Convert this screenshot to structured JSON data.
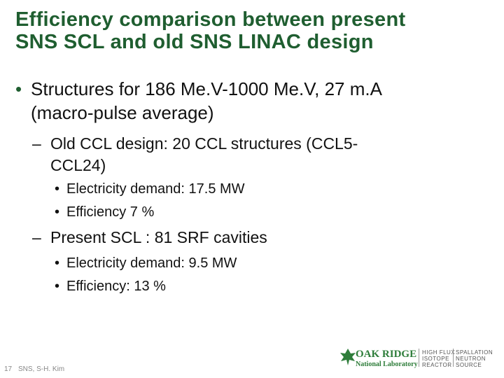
{
  "title": {
    "lines": [
      "Efficiency comparison between present",
      "SNS SCL and old SNS LINAC design"
    ]
  },
  "body": {
    "bullet": {
      "lines": [
        "Structures for 186 Me.V-1000 Me.V, 27 m.A",
        "(macro-pulse average)"
      ]
    },
    "old": {
      "lines": [
        "Old CCL design: 20 CCL structures (CCL5-",
        "CCL24)"
      ],
      "items": [
        "Electricity demand: 17.5 MW",
        "Efficiency 7 %"
      ]
    },
    "present": {
      "lines": [
        "Present SCL : 81 SRF cavities"
      ],
      "items": [
        "Electricity demand: 9.5 MW",
        "Efficiency: 13 %"
      ]
    }
  },
  "footer": {
    "page": "17",
    "author": "SNS, S-H. Kim"
  },
  "logo": {
    "ornl_top": "OAK RIDGE",
    "ornl_bottom": "National Laboratory",
    "hfir": [
      "HIGH FLUX",
      "ISOTOPE",
      "REACTOR"
    ],
    "sns": [
      "SPALLATION",
      "NEUTRON",
      "SOURCE"
    ]
  }
}
